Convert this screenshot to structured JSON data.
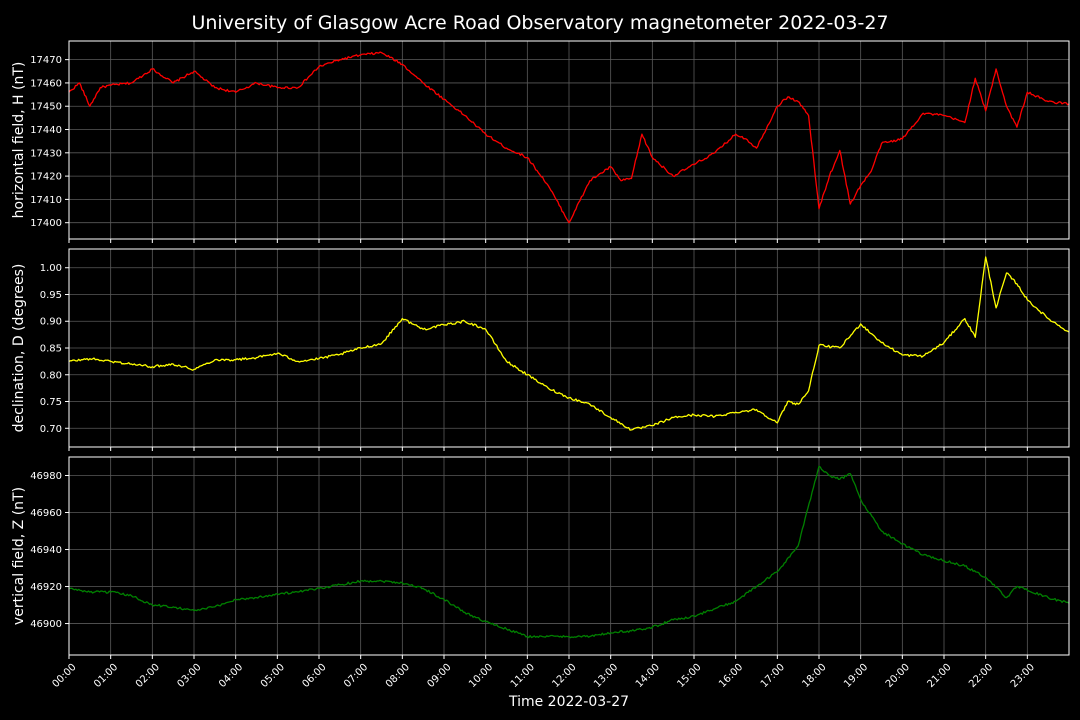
{
  "chart_data": {
    "type": "line",
    "title": "University of Glasgow Acre Road Observatory magnetometer 2022-03-27",
    "xlabel": "Time 2022-03-27",
    "x_ticks": [
      "00:00",
      "01:00",
      "02:00",
      "03:00",
      "04:00",
      "05:00",
      "06:00",
      "07:00",
      "08:00",
      "09:00",
      "10:00",
      "11:00",
      "12:00",
      "13:00",
      "14:00",
      "15:00",
      "16:00",
      "17:00",
      "18:00",
      "19:00",
      "20:00",
      "21:00",
      "22:00",
      "23:00"
    ],
    "xlim": [
      "00:00",
      "24:00"
    ],
    "grid": true,
    "panels": [
      {
        "id": "H",
        "ylabel": "horizontal field, H (nT)",
        "color": "#ff0000",
        "ylim": [
          17393,
          17478
        ],
        "yticks": [
          "17400",
          "17410",
          "17420",
          "17430",
          "17440",
          "17450",
          "17460",
          "17470"
        ],
        "x": [
          "00:00",
          "00:15",
          "00:30",
          "00:45",
          "01:00",
          "01:30",
          "02:00",
          "02:30",
          "03:00",
          "03:30",
          "04:00",
          "04:30",
          "05:00",
          "05:30",
          "06:00",
          "06:30",
          "07:00",
          "07:30",
          "08:00",
          "08:30",
          "09:00",
          "09:30",
          "10:00",
          "10:30",
          "11:00",
          "11:30",
          "12:00",
          "12:30",
          "13:00",
          "13:15",
          "13:30",
          "13:45",
          "14:00",
          "14:30",
          "15:00",
          "15:30",
          "16:00",
          "16:15",
          "16:30",
          "17:00",
          "17:15",
          "17:30",
          "17:45",
          "18:00",
          "18:15",
          "18:30",
          "18:45",
          "19:00",
          "19:15",
          "19:30",
          "20:00",
          "20:30",
          "21:00",
          "21:30",
          "21:45",
          "22:00",
          "22:15",
          "22:30",
          "22:45",
          "23:00",
          "23:30",
          "24:00"
        ],
        "values": [
          17456,
          17460,
          17450,
          17458,
          17459,
          17460,
          17466,
          17460,
          17465,
          17458,
          17456,
          17460,
          17458,
          17458,
          17467,
          17470,
          17472,
          17473,
          17468,
          17460,
          17453,
          17446,
          17438,
          17432,
          17428,
          17416,
          17400,
          17418,
          17424,
          17418,
          17419,
          17438,
          17428,
          17420,
          17425,
          17430,
          17438,
          17436,
          17432,
          17450,
          17454,
          17452,
          17446,
          17406,
          17420,
          17431,
          17408,
          17416,
          17422,
          17434,
          17436,
          17447,
          17446,
          17443,
          17462,
          17448,
          17466,
          17450,
          17441,
          17456,
          17452,
          17451
        ]
      },
      {
        "id": "D",
        "ylabel": "declination, D (degrees)",
        "color": "#ffff00",
        "ylim": [
          0.665,
          1.035
        ],
        "yticks": [
          "0.70",
          "0.75",
          "0.80",
          "0.85",
          "0.90",
          "0.95",
          "1.00"
        ],
        "x": [
          "00:00",
          "00:30",
          "01:00",
          "01:30",
          "02:00",
          "02:30",
          "03:00",
          "03:30",
          "04:00",
          "04:30",
          "05:00",
          "05:30",
          "06:00",
          "06:30",
          "07:00",
          "07:30",
          "08:00",
          "08:30",
          "09:00",
          "09:30",
          "10:00",
          "10:30",
          "11:00",
          "11:30",
          "12:00",
          "12:30",
          "13:00",
          "13:30",
          "14:00",
          "14:30",
          "15:00",
          "15:30",
          "16:00",
          "16:30",
          "17:00",
          "17:15",
          "17:30",
          "17:45",
          "18:00",
          "18:30",
          "19:00",
          "19:30",
          "20:00",
          "20:30",
          "21:00",
          "21:30",
          "21:45",
          "22:00",
          "22:15",
          "22:30",
          "22:45",
          "23:00",
          "23:30",
          "24:00"
        ],
        "values": [
          0.825,
          0.83,
          0.825,
          0.82,
          0.815,
          0.82,
          0.81,
          0.828,
          0.828,
          0.832,
          0.84,
          0.825,
          0.83,
          0.838,
          0.85,
          0.858,
          0.905,
          0.885,
          0.893,
          0.9,
          0.885,
          0.825,
          0.8,
          0.775,
          0.757,
          0.745,
          0.72,
          0.697,
          0.705,
          0.72,
          0.725,
          0.722,
          0.73,
          0.735,
          0.71,
          0.75,
          0.745,
          0.77,
          0.855,
          0.85,
          0.895,
          0.86,
          0.837,
          0.835,
          0.86,
          0.905,
          0.87,
          1.02,
          0.925,
          0.99,
          0.97,
          0.94,
          0.905,
          0.88
        ]
      },
      {
        "id": "Z",
        "ylabel": "vertical field, Z (nT)",
        "color": "#008000",
        "ylim": [
          46883,
          46990
        ],
        "yticks": [
          "46900",
          "46920",
          "46940",
          "46960",
          "46980"
        ],
        "x": [
          "00:00",
          "00:30",
          "01:00",
          "01:30",
          "02:00",
          "02:30",
          "03:00",
          "03:30",
          "04:00",
          "04:30",
          "05:00",
          "05:30",
          "06:00",
          "06:30",
          "07:00",
          "07:30",
          "08:00",
          "08:30",
          "09:00",
          "09:30",
          "10:00",
          "10:30",
          "11:00",
          "11:30",
          "12:00",
          "12:30",
          "13:00",
          "13:30",
          "14:00",
          "14:30",
          "15:00",
          "15:30",
          "16:00",
          "16:30",
          "17:00",
          "17:30",
          "18:00",
          "18:15",
          "18:30",
          "18:45",
          "19:00",
          "19:30",
          "20:00",
          "20:30",
          "21:00",
          "21:30",
          "22:00",
          "22:30",
          "22:45",
          "23:00",
          "23:30",
          "24:00"
        ],
        "values": [
          46919,
          46917,
          46917,
          46915,
          46910,
          46909,
          46907,
          46909,
          46913,
          46914,
          46916,
          46917,
          46919,
          46921,
          46923,
          46923,
          46922,
          46919,
          46913,
          46906,
          46901,
          46897,
          46893,
          46893,
          46893,
          46893,
          46895,
          46896,
          46898,
          46902,
          46904,
          46908,
          46912,
          46920,
          46928,
          46942,
          46985,
          46980,
          46978,
          46981,
          46967,
          46950,
          46943,
          46937,
          46934,
          46931,
          46925,
          46914,
          46920,
          46918,
          46914,
          46911
        ]
      }
    ]
  }
}
